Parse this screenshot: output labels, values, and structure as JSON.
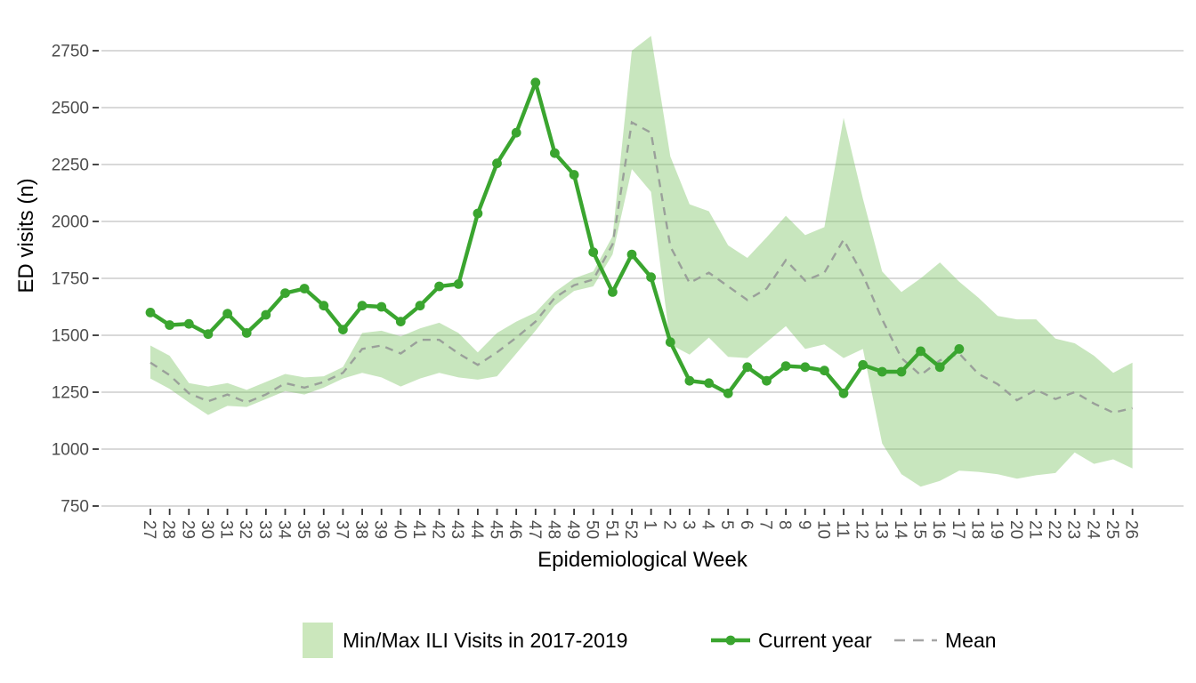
{
  "chart_data": {
    "type": "line",
    "title": "",
    "xlabel": "Epidemiological Week",
    "ylabel": "ED visits (n)",
    "grid": "horizontal",
    "legend_position": "bottom",
    "ylim": [
      750,
      2815
    ],
    "y_ticks": [
      750,
      1000,
      1250,
      1500,
      1750,
      2000,
      2250,
      2500,
      2750
    ],
    "x_categories": [
      "27",
      "28",
      "29",
      "30",
      "31",
      "32",
      "33",
      "34",
      "35",
      "36",
      "37",
      "38",
      "39",
      "40",
      "41",
      "42",
      "43",
      "44",
      "45",
      "46",
      "47",
      "48",
      "49",
      "50",
      "51",
      "52",
      "1",
      "2",
      "3",
      "4",
      "5",
      "6",
      "7",
      "8",
      "9",
      "10",
      "11",
      "12",
      "13",
      "14",
      "15",
      "16",
      "17",
      "18",
      "19",
      "20",
      "21",
      "22",
      "23",
      "24",
      "25",
      "26"
    ],
    "series": [
      {
        "name": "Min/Max ILI Visits in 2017-2019",
        "type": "ribbon",
        "min": [
          1310,
          1265,
          1205,
          1150,
          1190,
          1185,
          1220,
          1255,
          1240,
          1270,
          1310,
          1335,
          1315,
          1275,
          1310,
          1335,
          1315,
          1305,
          1320,
          1420,
          1520,
          1630,
          1695,
          1715,
          1855,
          2230,
          2130,
          1460,
          1415,
          1490,
          1405,
          1400,
          1470,
          1540,
          1440,
          1460,
          1400,
          1440,
          1025,
          890,
          835,
          860,
          905,
          900,
          890,
          870,
          885,
          895,
          985,
          935,
          955,
          915
        ],
        "max": [
          1455,
          1410,
          1290,
          1275,
          1290,
          1260,
          1295,
          1330,
          1315,
          1320,
          1360,
          1510,
          1520,
          1495,
          1530,
          1555,
          1510,
          1425,
          1510,
          1560,
          1600,
          1690,
          1750,
          1780,
          1935,
          2750,
          2815,
          2285,
          2075,
          2045,
          1895,
          1840,
          1930,
          2025,
          1940,
          1975,
          2455,
          2100,
          1780,
          1690,
          1750,
          1820,
          1735,
          1665,
          1585,
          1570,
          1570,
          1485,
          1465,
          1410,
          1335,
          1380
        ]
      },
      {
        "name": "Mean",
        "type": "dashed-line",
        "values": [
          1380,
          1325,
          1245,
          1210,
          1240,
          1205,
          1240,
          1290,
          1270,
          1295,
          1335,
          1440,
          1455,
          1420,
          1480,
          1480,
          1420,
          1370,
          1425,
          1490,
          1560,
          1665,
          1720,
          1745,
          1900,
          2435,
          2390,
          1890,
          1730,
          1775,
          1715,
          1655,
          1705,
          1830,
          1740,
          1775,
          1920,
          1765,
          1570,
          1400,
          1325,
          1390,
          1420,
          1330,
          1285,
          1215,
          1260,
          1220,
          1250,
          1200,
          1160,
          1180
        ]
      },
      {
        "name": "Current year",
        "type": "line-markers",
        "values": [
          1600,
          1545,
          1550,
          1505,
          1595,
          1510,
          1590,
          1685,
          1705,
          1630,
          1525,
          1630,
          1625,
          1560,
          1630,
          1715,
          1725,
          2035,
          2255,
          2390,
          2610,
          2300,
          2205,
          1865,
          1690,
          1855,
          1755,
          1470,
          1300,
          1290,
          1245,
          1360,
          1300,
          1365,
          1360,
          1345,
          1245,
          1370,
          1340,
          1340,
          1430,
          1360,
          1440
        ]
      }
    ],
    "legend": {
      "items": [
        {
          "label": "Min/Max ILI Visits in 2017-2019",
          "type": "ribbon"
        },
        {
          "label": "Current year",
          "type": "line-markers"
        },
        {
          "label": "Mean",
          "type": "dashed-line"
        }
      ]
    },
    "colors": {
      "current_line": "#3aa52f",
      "ribbon_fill": "#cbe7bc",
      "ribbon_fill_base": "#7cc463",
      "ribbon_opacity": 0.42,
      "mean_line": "#9aa09a",
      "legend_dash": "#a6a6a6",
      "grid": "#d9d9d9",
      "tick_mark": "#333333",
      "tick_text": "#4d4d4d",
      "axis_title": "#000000"
    }
  }
}
